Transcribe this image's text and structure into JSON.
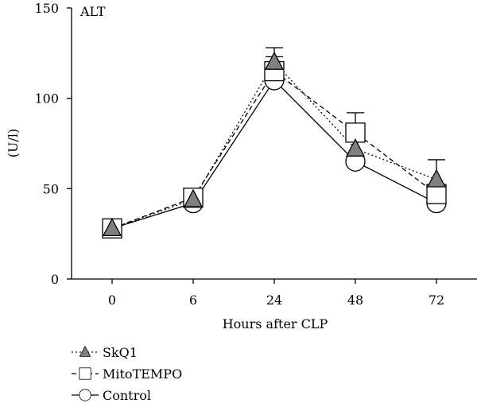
{
  "chart_data": {
    "type": "line",
    "title": "ALT",
    "xlabel": "Hours after CLP",
    "ylabel": "(U/l)",
    "categories": [
      "0",
      "6",
      "24",
      "48",
      "72"
    ],
    "ylim": [
      0,
      150
    ],
    "yticks": [
      0,
      50,
      100,
      150
    ],
    "grid": false,
    "legend_position": "bottom-left",
    "series": [
      {
        "name": "SkQ1",
        "marker": "triangle",
        "line_style": "dotted",
        "marker_fill": "#808080",
        "values": [
          28,
          44,
          120,
          72,
          55
        ],
        "errors": [
          0,
          0,
          8,
          0,
          11
        ]
      },
      {
        "name": "MitoTEMPO",
        "marker": "square",
        "line_style": "dashed",
        "marker_fill": "#ffffff",
        "values": [
          28,
          45,
          115,
          81,
          47
        ],
        "errors": [
          0,
          0,
          8,
          11,
          0
        ]
      },
      {
        "name": "Control",
        "marker": "circle",
        "line_style": "solid",
        "marker_fill": "#ffffff",
        "values": [
          28,
          42,
          110,
          65,
          42
        ],
        "errors": [
          0,
          0,
          0,
          0,
          0
        ]
      }
    ]
  }
}
